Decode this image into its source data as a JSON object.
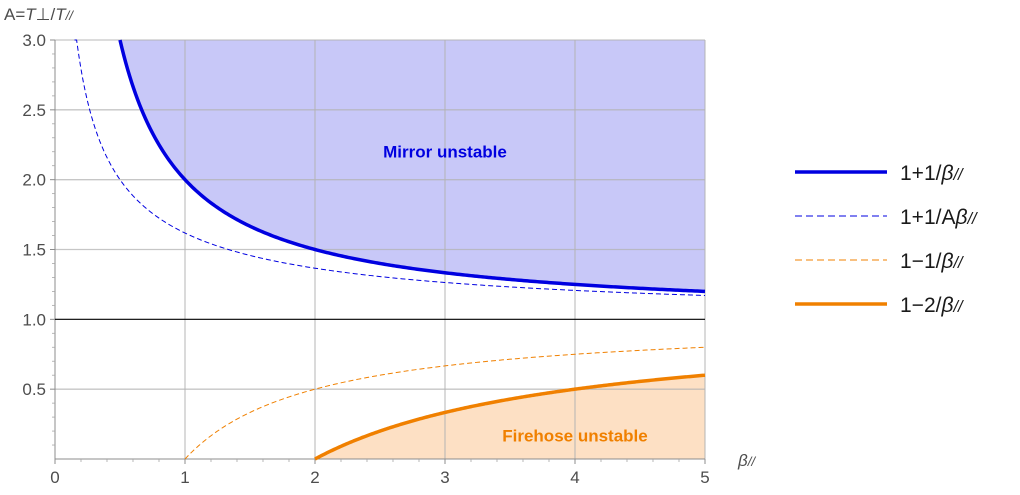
{
  "chart_data": {
    "type": "line",
    "ylabel": "A=T⊥/T//",
    "xlabel": "β//",
    "xlim": [
      0,
      5
    ],
    "ylim": [
      0,
      3
    ],
    "x_ticks": [
      "0",
      "1",
      "2",
      "3",
      "4",
      "5"
    ],
    "y_ticks": [
      "0.5",
      "1.0",
      "1.5",
      "2.0",
      "2.5",
      "3.0"
    ],
    "grid": true,
    "legend_position": "right",
    "reference_line": 1.0,
    "series": [
      {
        "name": "1+1/β//",
        "formula": "1+1/x",
        "style": "solid",
        "color": "#0000e0",
        "x_start": 0.5
      },
      {
        "name": "1+1/Aβ//",
        "formula": "(1+sqrt(1+4/x))/2",
        "style": "dashed",
        "color": "#0000e0",
        "x_start": 0.15
      },
      {
        "name": "1−1/β//",
        "formula": "1-1/x",
        "style": "dashed",
        "color": "#f08000",
        "x_start": 1
      },
      {
        "name": "1−2/β//",
        "formula": "1-2/x",
        "style": "solid",
        "color": "#f08000",
        "x_start": 2
      }
    ],
    "regions": [
      {
        "label": "Mirror unstable",
        "color": "#0000e0",
        "fill": "#c8c8f8",
        "bound": "above 1+1/β//",
        "label_pos": [
          3,
          2.2
        ]
      },
      {
        "label": "Firehose unstable",
        "color": "#f08000",
        "fill": "#fde0c4",
        "bound": "below 1−2/β//",
        "label_pos": [
          4,
          0.17
        ]
      }
    ]
  }
}
